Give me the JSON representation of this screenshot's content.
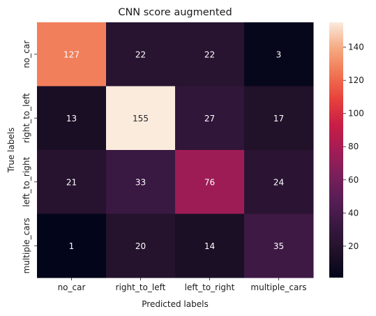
{
  "chart_data": {
    "type": "heatmap",
    "title": "CNN score augmented",
    "xlabel": "Predicted labels",
    "ylabel": "True labels",
    "x_categories": [
      "no_car",
      "right_to_left",
      "left_to_right",
      "multiple_cars"
    ],
    "y_categories": [
      "no_car",
      "right_to_left",
      "left_to_right",
      "multiple_cars"
    ],
    "values": [
      [
        127,
        22,
        22,
        3
      ],
      [
        13,
        155,
        27,
        17
      ],
      [
        21,
        33,
        76,
        24
      ],
      [
        1,
        20,
        14,
        35
      ]
    ],
    "colorbar": {
      "min": 1,
      "max": 155,
      "ticks": [
        20,
        40,
        60,
        80,
        100,
        120,
        140
      ],
      "colormap": "rocket"
    },
    "annotation_colors": {
      "dark_cell": "#ffffff",
      "light_cell": "#262626"
    },
    "grid": false
  }
}
